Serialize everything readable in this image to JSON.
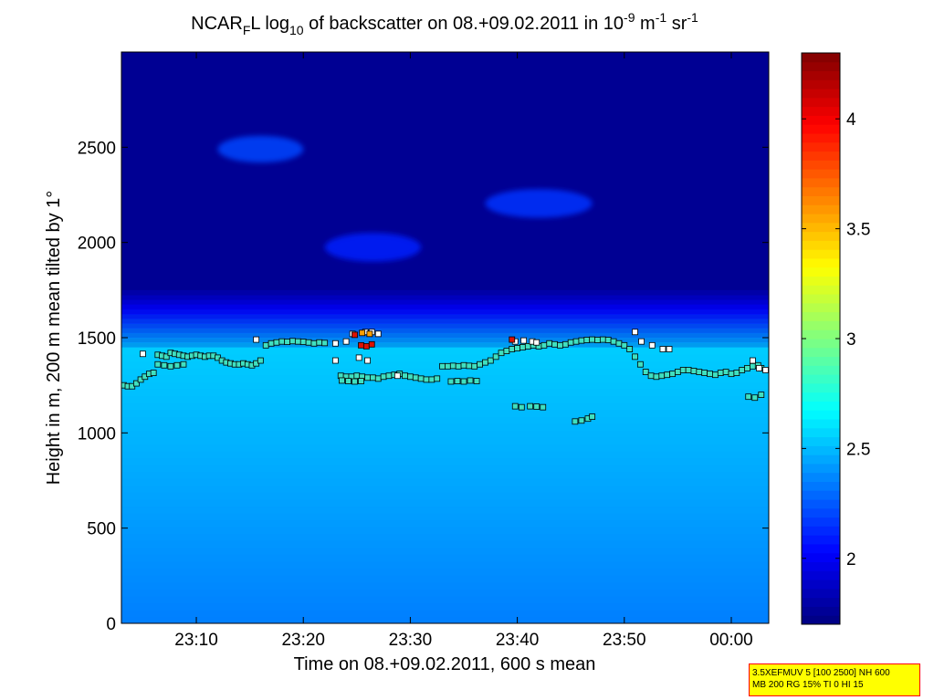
{
  "chart_data": {
    "type": "heatmap",
    "title": {
      "prefix": "NCAR",
      "sub1": "F",
      "mid1": "L log",
      "sub2": "10",
      "mid2": " of backscatter on 08.+09.02.2011 in 10",
      "sup1": "-9",
      "mid3": " m",
      "sup2": "-1",
      "mid4": " sr",
      "sup3": "-1"
    },
    "xlabel": "Time on 08.+09.02.2011, 600 s mean",
    "ylabel": "Height in m, 200 m mean tilted by 1°",
    "xlim_minutes": [
      1383,
      1443.5
    ],
    "ylim": [
      0,
      3000
    ],
    "x_ticks": [
      {
        "minutes": 1390,
        "label": "23:10"
      },
      {
        "minutes": 1400,
        "label": "23:20"
      },
      {
        "minutes": 1410,
        "label": "23:30"
      },
      {
        "minutes": 1420,
        "label": "23:40"
      },
      {
        "minutes": 1430,
        "label": "23:50"
      },
      {
        "minutes": 1440,
        "label": "00:00"
      }
    ],
    "y_ticks": [
      0,
      500,
      1000,
      1500,
      2000,
      2500
    ],
    "colorbar": {
      "range": [
        1.7,
        4.3
      ],
      "ticks": [
        "2",
        "2.5",
        "3",
        "3.5",
        "4"
      ],
      "tick_values": [
        2,
        2.5,
        3,
        3.5,
        4
      ],
      "colormap": "jet"
    },
    "background_fields": [
      {
        "name": "boundary-layer",
        "top_height": 1450,
        "value_low": 2.35,
        "value_top": 2.55
      },
      {
        "name": "free-troposphere",
        "value": 1.75
      }
    ],
    "cloud_features": [
      {
        "x_range_min": [
          1392,
          1400
        ],
        "y_range": [
          2420,
          2560
        ],
        "value": 2.2
      },
      {
        "x_range_min": [
          1402,
          1411
        ],
        "y_range": [
          1900,
          2050
        ],
        "value": 2.1
      },
      {
        "x_range_min": [
          1417,
          1427
        ],
        "y_range": [
          2130,
          2280
        ],
        "value": 2.15
      }
    ],
    "series": [
      {
        "name": "lower layer",
        "color": "#40e0c0",
        "points": [
          [
            1383.2,
            1250
          ],
          [
            1383.6,
            1245
          ],
          [
            1384.0,
            1245
          ],
          [
            1384.4,
            1260
          ],
          [
            1384.8,
            1280
          ],
          [
            1385.2,
            1295
          ],
          [
            1385.6,
            1310
          ],
          [
            1386.0,
            1315
          ],
          [
            1386.4,
            1410
          ],
          [
            1386.8,
            1405
          ],
          [
            1387.2,
            1400
          ],
          [
            1387.6,
            1420
          ],
          [
            1388.0,
            1415
          ],
          [
            1388.4,
            1410
          ],
          [
            1388.8,
            1405
          ],
          [
            1389.2,
            1400
          ],
          [
            1389.6,
            1405
          ],
          [
            1390.0,
            1410
          ],
          [
            1390.4,
            1405
          ],
          [
            1390.8,
            1400
          ],
          [
            1391.2,
            1405
          ],
          [
            1391.6,
            1405
          ],
          [
            1392.0,
            1395
          ],
          [
            1392.4,
            1380
          ],
          [
            1392.8,
            1370
          ],
          [
            1393.2,
            1365
          ],
          [
            1393.6,
            1360
          ],
          [
            1394.0,
            1360
          ],
          [
            1394.4,
            1365
          ],
          [
            1394.8,
            1360
          ],
          [
            1395.2,
            1355
          ],
          [
            1395.6,
            1365
          ],
          [
            1396.0,
            1380
          ],
          [
            1396.5,
            1460
          ],
          [
            1397.0,
            1470
          ],
          [
            1397.5,
            1475
          ],
          [
            1398.0,
            1480
          ],
          [
            1398.5,
            1478
          ],
          [
            1399.0,
            1482
          ],
          [
            1399.5,
            1480
          ],
          [
            1400.0,
            1478
          ],
          [
            1400.5,
            1475
          ],
          [
            1401.0,
            1470
          ],
          [
            1401.5,
            1475
          ],
          [
            1402.0,
            1472
          ],
          [
            1403.5,
            1300
          ],
          [
            1404.0,
            1295
          ],
          [
            1404.5,
            1295
          ],
          [
            1405.0,
            1300
          ],
          [
            1405.5,
            1295
          ],
          [
            1406.0,
            1290
          ],
          [
            1406.5,
            1290
          ],
          [
            1407.0,
            1285
          ],
          [
            1407.5,
            1295
          ],
          [
            1408.0,
            1300
          ],
          [
            1408.5,
            1305
          ],
          [
            1409.0,
            1310
          ],
          [
            1409.5,
            1300
          ],
          [
            1410.0,
            1295
          ],
          [
            1410.5,
            1290
          ],
          [
            1411.0,
            1285
          ],
          [
            1411.5,
            1280
          ],
          [
            1412.0,
            1280
          ],
          [
            1412.5,
            1285
          ],
          [
            1413.0,
            1350
          ],
          [
            1413.5,
            1350
          ],
          [
            1414.0,
            1352
          ],
          [
            1414.5,
            1350
          ],
          [
            1415.0,
            1355
          ],
          [
            1415.5,
            1352
          ],
          [
            1416.0,
            1350
          ],
          [
            1416.5,
            1360
          ],
          [
            1417.0,
            1370
          ],
          [
            1417.5,
            1380
          ],
          [
            1418.0,
            1400
          ],
          [
            1418.5,
            1420
          ],
          [
            1419.0,
            1430
          ],
          [
            1419.5,
            1440
          ],
          [
            1420.0,
            1445
          ],
          [
            1420.5,
            1450
          ],
          [
            1421.0,
            1455
          ],
          [
            1421.5,
            1460
          ],
          [
            1422.0,
            1455
          ],
          [
            1422.5,
            1460
          ],
          [
            1423.0,
            1470
          ],
          [
            1423.5,
            1465
          ],
          [
            1424.0,
            1460
          ],
          [
            1424.5,
            1465
          ],
          [
            1425.0,
            1475
          ],
          [
            1425.5,
            1480
          ],
          [
            1426.0,
            1485
          ],
          [
            1426.5,
            1488
          ],
          [
            1427.0,
            1490
          ],
          [
            1427.5,
            1488
          ],
          [
            1428.0,
            1490
          ],
          [
            1428.5,
            1488
          ],
          [
            1429.0,
            1480
          ],
          [
            1429.5,
            1470
          ],
          [
            1430.0,
            1460
          ],
          [
            1430.5,
            1440
          ],
          [
            1431.0,
            1400
          ],
          [
            1431.5,
            1360
          ],
          [
            1432.0,
            1320
          ],
          [
            1432.5,
            1300
          ],
          [
            1433.0,
            1295
          ],
          [
            1433.5,
            1300
          ],
          [
            1434.0,
            1305
          ],
          [
            1434.5,
            1310
          ],
          [
            1435.0,
            1320
          ],
          [
            1435.5,
            1330
          ],
          [
            1436.0,
            1330
          ],
          [
            1436.5,
            1325
          ],
          [
            1437.0,
            1320
          ],
          [
            1437.5,
            1315
          ],
          [
            1438.0,
            1310
          ],
          [
            1438.5,
            1305
          ],
          [
            1439.0,
            1315
          ],
          [
            1439.5,
            1320
          ],
          [
            1440.0,
            1310
          ],
          [
            1440.5,
            1315
          ],
          [
            1441.0,
            1330
          ],
          [
            1441.5,
            1340
          ],
          [
            1442.0,
            1350
          ],
          [
            1442.5,
            1355
          ],
          [
            1442.8,
            1340
          ],
          [
            1386.4,
            1360
          ],
          [
            1387.0,
            1355
          ],
          [
            1387.6,
            1350
          ],
          [
            1388.2,
            1355
          ],
          [
            1388.8,
            1360
          ],
          [
            1403.6,
            1275
          ],
          [
            1404.2,
            1272
          ],
          [
            1404.8,
            1270
          ],
          [
            1405.4,
            1272
          ],
          [
            1413.8,
            1270
          ],
          [
            1414.4,
            1272
          ],
          [
            1415.0,
            1270
          ],
          [
            1415.6,
            1275
          ],
          [
            1416.2,
            1272
          ],
          [
            1419.8,
            1140
          ],
          [
            1420.4,
            1135
          ],
          [
            1421.2,
            1140
          ],
          [
            1421.8,
            1138
          ],
          [
            1422.4,
            1135
          ],
          [
            1425.4,
            1060
          ],
          [
            1426.0,
            1065
          ],
          [
            1426.6,
            1075
          ],
          [
            1427.0,
            1085
          ],
          [
            1441.6,
            1190
          ],
          [
            1442.2,
            1185
          ],
          [
            1442.8,
            1200
          ]
        ]
      },
      {
        "name": "upper layer",
        "color": "#ffffff",
        "points": [
          [
            1385.0,
            1415
          ],
          [
            1395.6,
            1490
          ],
          [
            1403.0,
            1470
          ],
          [
            1404.0,
            1480
          ],
          [
            1404.6,
            1520
          ],
          [
            1405.8,
            1530
          ],
          [
            1406.4,
            1530
          ],
          [
            1407.0,
            1520
          ],
          [
            1405.2,
            1395
          ],
          [
            1406.0,
            1380
          ],
          [
            1419.8,
            1480
          ],
          [
            1420.6,
            1485
          ],
          [
            1421.4,
            1480
          ],
          [
            1421.8,
            1475
          ],
          [
            1431.0,
            1530
          ],
          [
            1431.6,
            1480
          ],
          [
            1432.6,
            1460
          ],
          [
            1433.6,
            1440
          ],
          [
            1434.2,
            1440
          ],
          [
            1442.0,
            1380
          ],
          [
            1442.6,
            1340
          ],
          [
            1443.2,
            1330
          ],
          [
            1403.0,
            1380
          ],
          [
            1408.8,
            1300
          ]
        ]
      },
      {
        "name": "high values",
        "color": "#dd1100",
        "points": [
          [
            1404.8,
            1515
          ],
          [
            1405.4,
            1460
          ],
          [
            1405.9,
            1455
          ],
          [
            1406.4,
            1465
          ],
          [
            1419.5,
            1490
          ]
        ]
      },
      {
        "name": "orange values",
        "color": "#ffa000",
        "points": [
          [
            1405.5,
            1525
          ],
          [
            1406.2,
            1520
          ]
        ]
      }
    ]
  },
  "info_box": {
    "line1": "3.5XEFMUV 5 [100 2500] NH 600",
    "line2": "MB 200 RG 15% TI 0 HI 15"
  }
}
